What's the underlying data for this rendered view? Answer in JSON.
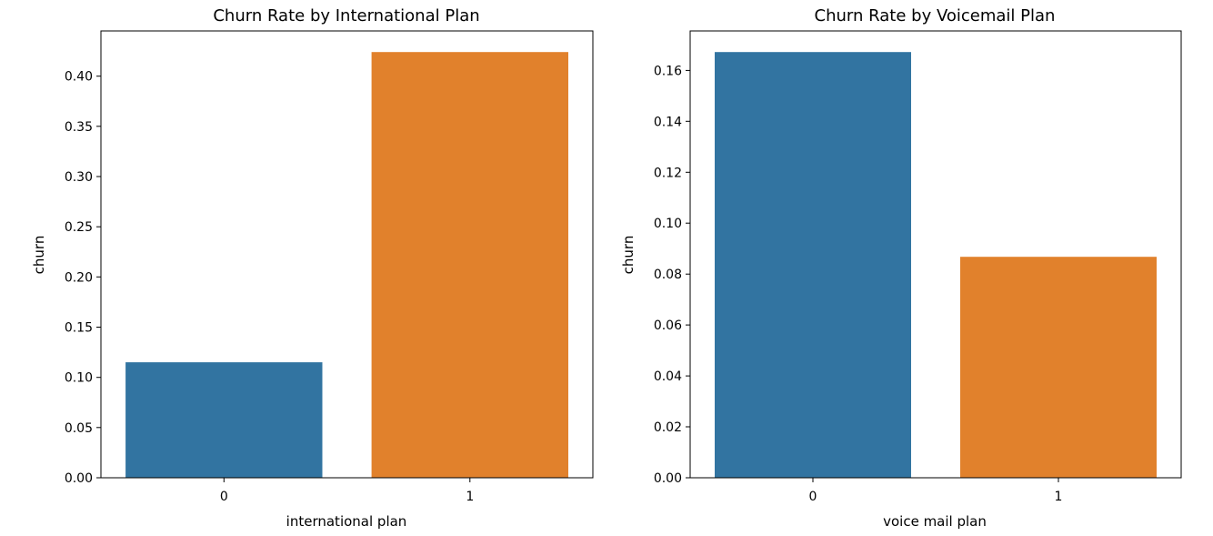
{
  "chart_data": [
    {
      "type": "bar",
      "title": "Churn Rate by International Plan",
      "xlabel": "international plan",
      "ylabel": "churn",
      "categories": [
        "0",
        "1"
      ],
      "values": [
        0.115,
        0.424
      ],
      "colors": [
        "#3274a1",
        "#e1812c"
      ],
      "ylim": [
        0,
        0.445
      ],
      "yticks": [
        0.0,
        0.05,
        0.1,
        0.15,
        0.2,
        0.25,
        0.3,
        0.35,
        0.4
      ],
      "ytick_labels": [
        "0.00",
        "0.05",
        "0.10",
        "0.15",
        "0.20",
        "0.25",
        "0.30",
        "0.35",
        "0.40"
      ],
      "grid": false,
      "legend": "none"
    },
    {
      "type": "bar",
      "title": "Churn Rate by Voicemail Plan",
      "xlabel": "voice mail plan",
      "ylabel": "churn",
      "categories": [
        "0",
        "1"
      ],
      "values": [
        0.1672,
        0.0868
      ],
      "colors": [
        "#3274a1",
        "#e1812c"
      ],
      "ylim": [
        0,
        0.1755
      ],
      "yticks": [
        0.0,
        0.02,
        0.04,
        0.06,
        0.08,
        0.1,
        0.12,
        0.14,
        0.16
      ],
      "ytick_labels": [
        "0.00",
        "0.02",
        "0.04",
        "0.06",
        "0.08",
        "0.10",
        "0.12",
        "0.14",
        "0.16"
      ],
      "grid": false,
      "legend": "none"
    }
  ]
}
